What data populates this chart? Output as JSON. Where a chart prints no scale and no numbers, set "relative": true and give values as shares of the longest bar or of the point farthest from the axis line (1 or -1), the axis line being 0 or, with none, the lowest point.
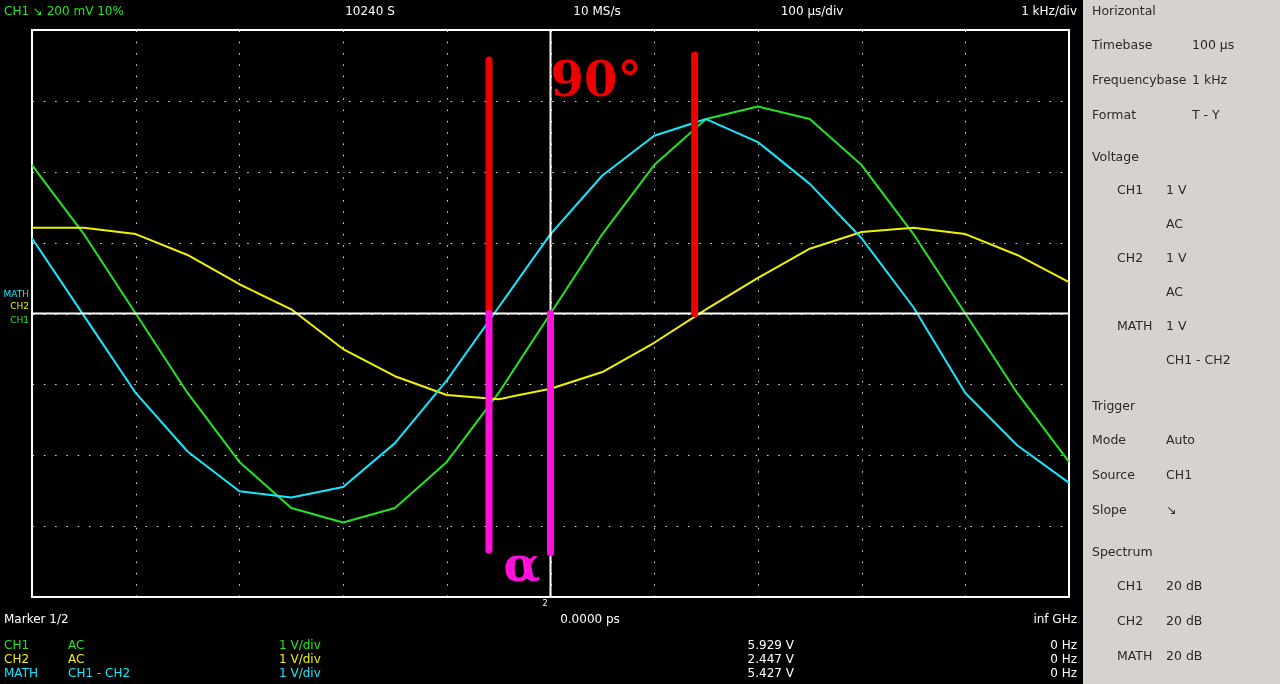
{
  "chart_data": {
    "type": "line",
    "relative": true,
    "categories": [
      null,
      null,
      null,
      null,
      null,
      null,
      null,
      null,
      null,
      null,
      null,
      null,
      null,
      null,
      null,
      null,
      null,
      null,
      null,
      null,
      null
    ],
    "series": [
      {
        "name": "CH1",
        "color": "#22e422",
        "values": [
          0.71,
          0.38,
          0,
          -0.38,
          -0.71,
          -0.93,
          -1,
          -0.93,
          -0.71,
          -0.38,
          0,
          0.38,
          0.71,
          0.93,
          0.99,
          0.93,
          0.71,
          0.38,
          0,
          -0.38,
          -0.71
        ]
      },
      {
        "name": "CH2",
        "color": "#f2f200",
        "values": [
          0.41,
          0.41,
          0.38,
          0.28,
          0.14,
          0.02,
          -0.17,
          -0.3,
          -0.39,
          -0.41,
          -0.36,
          -0.28,
          -0.14,
          0.02,
          0.17,
          0.31,
          0.39,
          0.41,
          0.38,
          0.28,
          0.15
        ]
      },
      {
        "name": "MATH",
        "color": "#14e8ff",
        "values": [
          0.36,
          -0.01,
          -0.38,
          -0.66,
          -0.85,
          -0.88,
          -0.83,
          -0.62,
          -0.32,
          0.03,
          0.38,
          0.66,
          0.85,
          0.93,
          0.82,
          0.62,
          0.36,
          0.03,
          -0.38,
          -0.63,
          -0.81
        ]
      }
    ],
    "grid": true,
    "marker": "none",
    "line_style": "solid",
    "annotations": [
      "CH1 ↘ 200 mV 10%",
      "10240 S",
      "10 MS/s",
      "100 µs/div",
      "1 kHz/div",
      "Marker 1/2",
      "0.0000 ps",
      "inf GHz",
      "CH1",
      "AC",
      "1 V/div",
      "5.929 V",
      "0 Hz",
      "CH2",
      "AC",
      "1 V/div",
      "2.447 V",
      "0 Hz",
      "MATH",
      "CH1 - CH2",
      "1 V/div",
      "5.427 V",
      "0 Hz",
      "2",
      "Horizontal",
      "Timebase",
      "100 µs",
      "Frequencybase",
      "1 kHz",
      "Format",
      "T - Y",
      "Voltage",
      "CH1",
      "1 V",
      "AC",
      "CH2",
      "1 V",
      "AC",
      "MATH",
      "1 V",
      "CH1 - CH2",
      "Trigger",
      "Mode",
      "Auto",
      "Source",
      "CH1",
      "Slope",
      "↘",
      "Spectrum",
      "CH1",
      "20 dB",
      "CH2",
      "20 dB",
      "MATH",
      "20 dB",
      "90°",
      "α"
    ]
  }
}
